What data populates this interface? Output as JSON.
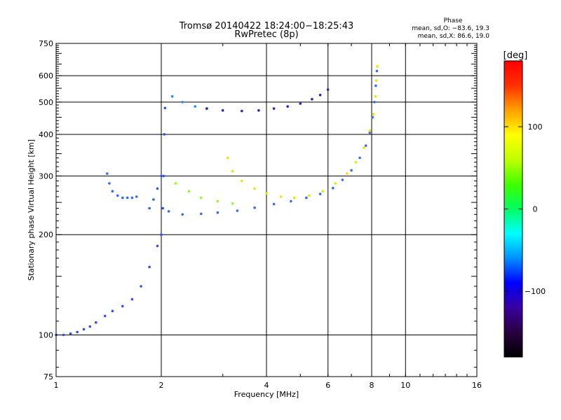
{
  "chart_data": {
    "type": "scatter",
    "title": "Tromsø 20140422 18:24:00−18:25:43",
    "subtitle": "RwPretec (8p)",
    "xlabel": "Frequency [MHz]",
    "ylabel": "Stationary phase Virtual Height [km]",
    "x_scale": "log",
    "y_scale": "log",
    "xlim": [
      1,
      16
    ],
    "ylim": [
      75,
      750
    ],
    "x_ticks": [
      1,
      2,
      4,
      6,
      8,
      10,
      16
    ],
    "x_tick_labels": [
      "1",
      "2",
      "4",
      "6",
      "8",
      "10",
      "16"
    ],
    "y_ticks": [
      75,
      100,
      200,
      300,
      400,
      500,
      600,
      750
    ],
    "y_tick_labels": [
      "75",
      "100",
      "200",
      "300",
      "400",
      "500",
      "600",
      "750"
    ],
    "grid": true,
    "phase_box": {
      "title": "Phase",
      "line_o": "mean, sd,O: −83.6, 19.3",
      "line_x": "mean, sd,X:  86.6, 19.0"
    },
    "colorbar": {
      "label": "[deg]",
      "range": [
        -180,
        180
      ],
      "ticks": [
        100,
        0,
        -100
      ],
      "tick_labels": [
        "100",
        "0",
        "−100"
      ],
      "colormap": [
        "#000000",
        "#2a0040",
        "#3a00a0",
        "#0000ff",
        "#0090ff",
        "#00ffff",
        "#00ff60",
        "#40ff00",
        "#c0ff00",
        "#ffff00",
        "#ffa000",
        "#ff3000",
        "#ff0000"
      ]
    },
    "series": [
      {
        "mode": "O",
        "phase_mean": -100,
        "color": "#2d4cff",
        "values": [
          [
            1.0,
            100
          ],
          [
            1.05,
            100
          ],
          [
            1.1,
            101
          ],
          [
            1.15,
            102
          ],
          [
            1.2,
            104
          ],
          [
            1.25,
            106
          ],
          [
            1.3,
            109
          ],
          [
            1.38,
            114
          ],
          [
            1.45,
            118
          ],
          [
            1.55,
            122
          ],
          [
            1.65,
            128
          ],
          [
            1.75,
            140
          ],
          [
            1.85,
            160
          ],
          [
            1.95,
            185
          ],
          [
            2.0,
            200
          ],
          [
            2.02,
            240
          ],
          [
            2.03,
            300
          ],
          [
            2.04,
            400
          ],
          [
            2.05,
            480
          ]
        ]
      },
      {
        "mode": "O",
        "phase_mean": -100,
        "color": "#3366ff",
        "values": [
          [
            1.4,
            305
          ],
          [
            1.42,
            285
          ],
          [
            1.45,
            270
          ],
          [
            1.5,
            262
          ],
          [
            1.55,
            258
          ],
          [
            1.6,
            258
          ],
          [
            1.65,
            258
          ],
          [
            1.7,
            260
          ]
        ]
      },
      {
        "mode": "O",
        "phase_mean": -95,
        "color": "#2f59f0",
        "values": [
          [
            1.85,
            240
          ],
          [
            1.9,
            255
          ],
          [
            1.95,
            275
          ],
          [
            2.0,
            300
          ]
        ]
      },
      {
        "mode": "O",
        "phase_mean": -90,
        "color": "#1f8cff",
        "values": [
          [
            2.15,
            520
          ],
          [
            2.3,
            500
          ],
          [
            2.5,
            485
          ],
          [
            2.7,
            478
          ]
        ]
      },
      {
        "mode": "O",
        "phase_mean": -120,
        "color": "#2a22c8",
        "values": [
          [
            2.7,
            478
          ],
          [
            3.0,
            472
          ],
          [
            3.4,
            470
          ],
          [
            3.8,
            472
          ],
          [
            4.2,
            478
          ],
          [
            4.6,
            485
          ],
          [
            5.0,
            495
          ],
          [
            5.4,
            510
          ],
          [
            5.7,
            525
          ],
          [
            6.0,
            545
          ]
        ]
      },
      {
        "mode": "O",
        "phase_mean": -95,
        "color": "#2e6ef0",
        "values": [
          [
            2.1,
            235
          ],
          [
            2.3,
            230
          ],
          [
            2.6,
            231
          ],
          [
            2.9,
            233
          ],
          [
            3.3,
            236
          ],
          [
            3.7,
            241
          ],
          [
            4.2,
            247
          ],
          [
            4.7,
            252
          ],
          [
            5.2,
            258
          ],
          [
            5.7,
            265
          ],
          [
            6.2,
            276
          ],
          [
            6.6,
            292
          ],
          [
            7.0,
            312
          ],
          [
            7.4,
            340
          ],
          [
            7.7,
            370
          ],
          [
            7.9,
            405
          ],
          [
            8.05,
            450
          ],
          [
            8.15,
            500
          ],
          [
            8.22,
            560
          ],
          [
            8.28,
            620
          ]
        ]
      },
      {
        "mode": "X",
        "phase_mean": 100,
        "color": "#e2e800",
        "values": [
          [
            3.1,
            340
          ],
          [
            3.2,
            310
          ],
          [
            3.4,
            290
          ],
          [
            3.7,
            275
          ],
          [
            4.0,
            266
          ],
          [
            4.4,
            260
          ],
          [
            4.8,
            258
          ],
          [
            5.3,
            262
          ],
          [
            5.8,
            270
          ],
          [
            6.3,
            285
          ],
          [
            6.8,
            305
          ],
          [
            7.2,
            330
          ],
          [
            7.6,
            365
          ],
          [
            7.9,
            410
          ],
          [
            8.1,
            460
          ],
          [
            8.2,
            520
          ],
          [
            8.25,
            580
          ],
          [
            8.3,
            640
          ]
        ]
      },
      {
        "mode": "X",
        "phase_mean": 60,
        "color": "#8cff20",
        "values": [
          [
            2.2,
            285
          ],
          [
            2.4,
            270
          ],
          [
            2.6,
            258
          ],
          [
            2.9,
            252
          ],
          [
            3.2,
            248
          ]
        ]
      }
    ]
  }
}
